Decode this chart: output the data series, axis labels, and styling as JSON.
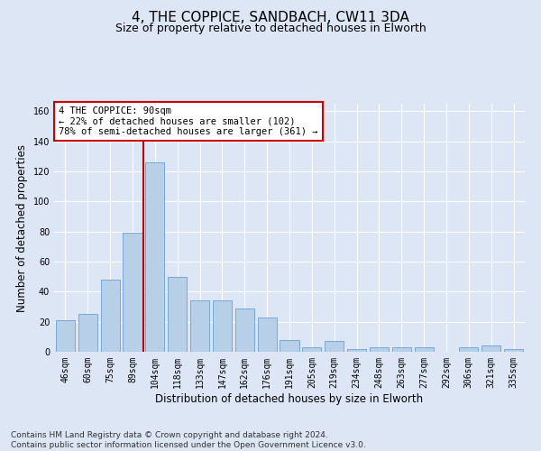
{
  "title": "4, THE COPPICE, SANDBACH, CW11 3DA",
  "subtitle": "Size of property relative to detached houses in Elworth",
  "xlabel": "Distribution of detached houses by size in Elworth",
  "ylabel": "Number of detached properties",
  "footer_line1": "Contains HM Land Registry data © Crown copyright and database right 2024.",
  "footer_line2": "Contains public sector information licensed under the Open Government Licence v3.0.",
  "categories": [
    "46sqm",
    "60sqm",
    "75sqm",
    "89sqm",
    "104sqm",
    "118sqm",
    "133sqm",
    "147sqm",
    "162sqm",
    "176sqm",
    "191sqm",
    "205sqm",
    "219sqm",
    "234sqm",
    "248sqm",
    "263sqm",
    "277sqm",
    "292sqm",
    "306sqm",
    "321sqm",
    "335sqm"
  ],
  "values": [
    21,
    25,
    48,
    79,
    126,
    50,
    34,
    34,
    29,
    23,
    8,
    3,
    7,
    2,
    3,
    3,
    3,
    0,
    3,
    4,
    2
  ],
  "bar_color": "#b8cfe8",
  "bar_edge_color": "#6a9fd8",
  "vline_color": "#cc0000",
  "annotation_line1": "4 THE COPPICE: 90sqm",
  "annotation_line2": "← 22% of detached houses are smaller (102)",
  "annotation_line3": "78% of semi-detached houses are larger (361) →",
  "annotation_box_color": "#ffffff",
  "annotation_box_edge": "#cc0000",
  "annotation_fontsize": 7.5,
  "ylim": [
    0,
    165
  ],
  "yticks": [
    0,
    20,
    40,
    60,
    80,
    100,
    120,
    140,
    160
  ],
  "background_color": "#dce6f5",
  "plot_bg_color": "#dce6f5",
  "grid_color": "#ffffff",
  "title_fontsize": 11,
  "subtitle_fontsize": 9,
  "xlabel_fontsize": 8.5,
  "ylabel_fontsize": 8.5,
  "tick_fontsize": 7,
  "footer_fontsize": 6.5
}
